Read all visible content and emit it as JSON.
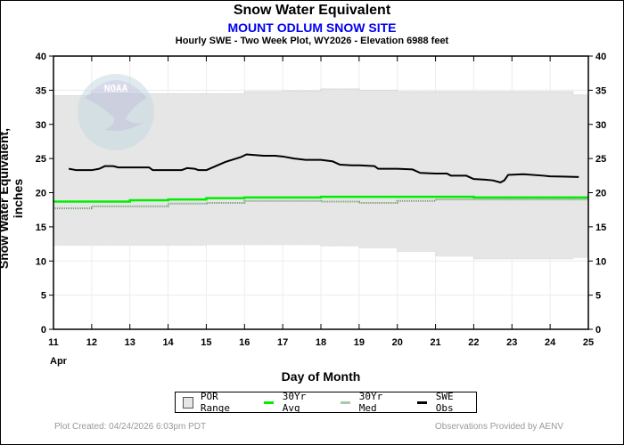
{
  "chart_data": {
    "type": "line",
    "title": "Snow Water Equivalent",
    "subtitle": "MOUNT ODLUM SNOW SITE",
    "subtitle2": "Hourly SWE - Two Week Plot, WY2026 -  Elevation 6988 feet",
    "xlabel": "Day of Month",
    "ylabel": "Snow Water Equivalent, inches",
    "month_label": "Apr",
    "xlim": [
      11,
      25
    ],
    "ylim": [
      0,
      40
    ],
    "x_ticks": [
      "11",
      "12",
      "13",
      "14",
      "15",
      "16",
      "17",
      "18",
      "19",
      "20",
      "21",
      "22",
      "23",
      "24",
      "25"
    ],
    "y_ticks": [
      "0",
      "5",
      "10",
      "15",
      "20",
      "25",
      "30",
      "35",
      "40"
    ],
    "grid": true,
    "legend_position": "bottom-center",
    "series": [
      {
        "name": "POR Range",
        "type": "band",
        "color": "#e6e6e6",
        "x": [
          11,
          12,
          13,
          14,
          15,
          16,
          17,
          18,
          19,
          20,
          21,
          22,
          23,
          24,
          24.6,
          25
        ],
        "upper": [
          34.2,
          34.5,
          34.5,
          34.5,
          34.5,
          34.8,
          34.9,
          35.2,
          35.0,
          34.8,
          34.8,
          34.8,
          34.8,
          34.8,
          34.3,
          34.3
        ],
        "lower": [
          12.3,
          12.3,
          12.3,
          12.3,
          12.4,
          12.4,
          12.4,
          12.2,
          11.9,
          11.4,
          10.7,
          10.3,
          10.3,
          10.3,
          10.5,
          10.5
        ]
      },
      {
        "name": "30Yr Avg",
        "type": "step",
        "color": "#00ee00",
        "x": [
          11,
          12,
          13,
          14,
          15,
          16,
          17,
          18,
          19,
          20,
          21,
          22,
          23,
          24,
          25
        ],
        "values": [
          18.7,
          18.7,
          18.9,
          19.0,
          19.2,
          19.3,
          19.3,
          19.4,
          19.4,
          19.4,
          19.4,
          19.3,
          19.3,
          19.3,
          19.3
        ]
      },
      {
        "name": "30Yr Med",
        "type": "step",
        "color": "#779977",
        "x": [
          11,
          12,
          13,
          14,
          15,
          16,
          17,
          18,
          19,
          20,
          21,
          22,
          23,
          24,
          25
        ],
        "values": [
          17.7,
          18.0,
          18.0,
          18.4,
          18.5,
          18.8,
          18.8,
          18.7,
          18.5,
          18.8,
          19.0,
          19.0,
          19.0,
          19.0,
          19.0
        ]
      },
      {
        "name": "SWE Obs",
        "type": "line",
        "color": "#000000",
        "x": [
          11.4,
          11.6,
          12.0,
          12.2,
          12.35,
          12.55,
          12.7,
          13.0,
          13.5,
          13.6,
          14.0,
          14.35,
          14.5,
          14.7,
          14.8,
          15.0,
          15.5,
          15.9,
          16.05,
          16.5,
          16.8,
          17.0,
          17.3,
          17.6,
          18.0,
          18.3,
          18.5,
          18.8,
          19.0,
          19.4,
          19.5,
          20.0,
          20.4,
          20.6,
          21.0,
          21.3,
          21.4,
          21.8,
          22.0,
          22.3,
          22.5,
          22.7,
          22.8,
          22.9,
          23.3,
          23.8,
          24.0,
          24.75
        ],
        "values": [
          23.5,
          23.3,
          23.3,
          23.5,
          23.9,
          23.9,
          23.7,
          23.7,
          23.7,
          23.3,
          23.3,
          23.3,
          23.6,
          23.5,
          23.3,
          23.3,
          24.5,
          25.2,
          25.6,
          25.4,
          25.4,
          25.3,
          25.0,
          24.8,
          24.8,
          24.6,
          24.1,
          24.0,
          24.0,
          23.9,
          23.5,
          23.5,
          23.4,
          22.9,
          22.8,
          22.8,
          22.5,
          22.5,
          22.0,
          21.9,
          21.8,
          21.5,
          21.8,
          22.6,
          22.7,
          22.5,
          22.4,
          22.3
        ]
      }
    ]
  },
  "legend": {
    "por": "POR Range",
    "avg": "30Yr Avg",
    "med": "30Yr Med",
    "obs": "SWE Obs"
  },
  "footer": {
    "created": "Plot Created: 04/24/2026 6:03pm PDT",
    "provider": "Observations Provided by AENV"
  },
  "watermark": "NOAA"
}
